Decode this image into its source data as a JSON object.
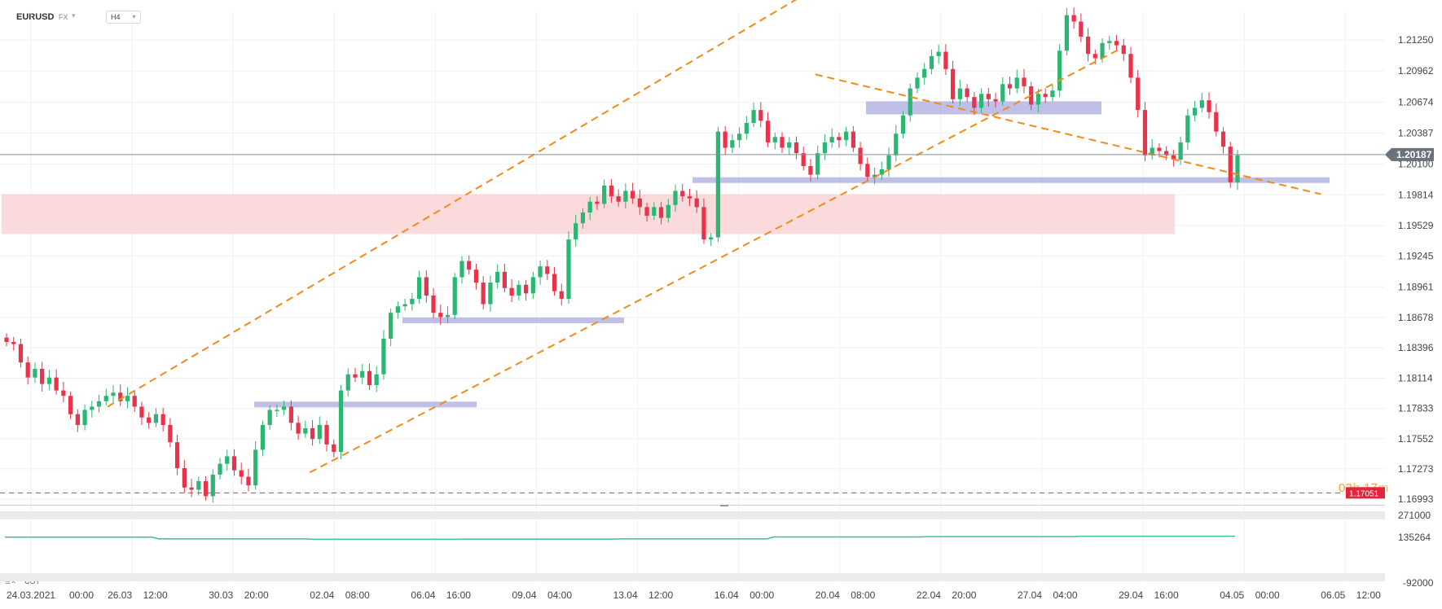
{
  "header": {
    "symbol": "EURUSD",
    "market": "FX",
    "timeframe": "H4"
  },
  "indicator": {
    "label": "COT"
  },
  "countdown": {
    "hours": "02",
    "h_unit": "h",
    "minutes": "17",
    "m_unit": "m"
  },
  "colors": {
    "bull": "#2bb673",
    "bear": "#e8334a",
    "trendline": "#f28a1c",
    "zone_blue": "#a9a9e0",
    "zone_red": "#f9d3d3",
    "current_price_bg": "#6b7279",
    "ref_line": "#e8334a",
    "cot_line": "#3fbf9f"
  },
  "chart_data": {
    "type": "candlestick",
    "symbol": "EURUSD",
    "timeframe": "H4",
    "current_price": "1.20187",
    "reference_price": "1.17051",
    "y_ticks": [
      "1.21250",
      "1.20962",
      "1.20674",
      "1.20387",
      "1.20100",
      "1.19814",
      "1.19529",
      "1.19245",
      "1.18961",
      "1.18678",
      "1.18396",
      "1.18114",
      "1.17833",
      "1.17552",
      "1.17273",
      "1.16993"
    ],
    "x_ticks": [
      {
        "date": "24.03.2021",
        "time": "00:00"
      },
      {
        "date": "26.03",
        "time": "12:00"
      },
      {
        "date": "30.03",
        "time": "20:00"
      },
      {
        "date": "02.04",
        "time": "08:00"
      },
      {
        "date": "06.04",
        "time": "16:00"
      },
      {
        "date": "09.04",
        "time": "04:00"
      },
      {
        "date": "13.04",
        "time": "12:00"
      },
      {
        "date": "16.04",
        "time": "00:00"
      },
      {
        "date": "20.04",
        "time": "08:00"
      },
      {
        "date": "22.04",
        "time": "20:00"
      },
      {
        "date": "27.04",
        "time": "04:00"
      },
      {
        "date": "29.04",
        "time": "16:00"
      },
      {
        "date": "04.05",
        "time": "00:00"
      },
      {
        "date": "06.05",
        "time": "12:00"
      }
    ],
    "closes": [
      1.1845,
      1.1843,
      1.1826,
      1.1812,
      1.182,
      1.1806,
      1.1812,
      1.18,
      1.1795,
      1.1778,
      1.1768,
      1.1782,
      1.1785,
      1.179,
      1.1795,
      1.1798,
      1.179,
      1.1795,
      1.1785,
      1.1775,
      1.177,
      1.1778,
      1.1768,
      1.1752,
      1.1728,
      1.171,
      1.1708,
      1.1716,
      1.1702,
      1.1722,
      1.1732,
      1.1739,
      1.1726,
      1.172,
      1.1712,
      1.1745,
      1.1768,
      1.1782,
      1.1782,
      1.1785,
      1.177,
      1.176,
      1.1765,
      1.1755,
      1.1768,
      1.175,
      1.1743,
      1.18,
      1.1815,
      1.1812,
      1.1818,
      1.1805,
      1.1815,
      1.1848,
      1.1872,
      1.1878,
      1.188,
      1.1885,
      1.1905,
      1.1888,
      1.1872,
      1.1868,
      1.187,
      1.1905,
      1.192,
      1.1912,
      1.19,
      1.188,
      1.19,
      1.191,
      1.1895,
      1.1888,
      1.1898,
      1.189,
      1.1905,
      1.1915,
      1.1908,
      1.1892,
      1.1885,
      1.194,
      1.1955,
      1.1965,
      1.1975,
      1.1973,
      1.199,
      1.198,
      1.1975,
      1.1985,
      1.1978,
      1.197,
      1.1962,
      1.197,
      1.196,
      1.1972,
      1.1985,
      1.198,
      1.1978,
      1.197,
      1.194,
      1.1942,
      1.204,
      1.2025,
      1.2032,
      1.2038,
      1.2048,
      1.206,
      1.205,
      1.203,
      1.2035,
      1.2025,
      1.203,
      1.202,
      1.2008,
      1.2,
      1.202,
      1.203,
      1.2035,
      1.2032,
      1.204,
      1.2025,
      1.201,
      1.1998,
      1.2,
      1.2005,
      1.2018,
      1.2038,
      1.2055,
      1.208,
      1.209,
      1.2098,
      1.211,
      1.2114,
      1.2098,
      1.207,
      1.208,
      1.2072,
      1.2062,
      1.2075,
      1.207,
      1.2068,
      1.2084,
      1.208,
      1.209,
      1.2082,
      1.2065,
      1.2075,
      1.2072,
      1.2078,
      1.2115,
      1.2148,
      1.2142,
      1.2128,
      1.2112,
      1.2108,
      1.2122,
      1.2124,
      1.212,
      1.2112,
      1.209,
      1.206,
      1.2018,
      1.2025,
      1.2022,
      1.2018,
      1.2014,
      1.203,
      1.2055,
      1.2062,
      1.2069,
      1.2058,
      1.204,
      1.2026,
      1.1993,
      1.2018
    ],
    "annotations": {
      "trendlines": [
        {
          "from": [
            "26.03 12:00",
            1.1785
          ],
          "to": [
            "20.04 08:00",
            1.2173
          ]
        },
        {
          "from": [
            "02.04 08:00",
            1.1724
          ],
          "to": [
            "29.04 16:00",
            1.2116
          ]
        },
        {
          "from": [
            "20.04 08:00",
            1.2093
          ],
          "to": [
            "06.05 12:00",
            1.1982
          ]
        }
      ],
      "zones": [
        {
          "kind": "support",
          "price": 1.1787
        },
        {
          "kind": "support",
          "price": 1.1865
        },
        {
          "kind": "support",
          "price": 1.1995
        },
        {
          "kind": "resistance",
          "price": 1.2062
        },
        {
          "kind": "demand",
          "from": 1.1945,
          "to": 1.1982
        }
      ],
      "reference_line": 1.17051
    },
    "indicator": {
      "name": "COT",
      "y_ticks": [
        "271000",
        "135264",
        "-92000"
      ],
      "values": [
        138000,
        138000,
        129000,
        129000,
        127000,
        127000,
        128000,
        128000,
        129000,
        129000,
        139000,
        139000,
        141000,
        141000,
        143000,
        143000,
        143000
      ]
    }
  }
}
